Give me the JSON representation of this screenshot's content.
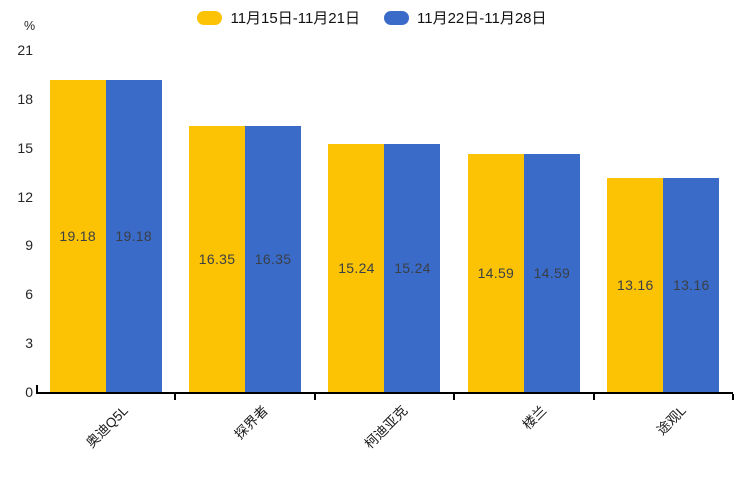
{
  "chart_data": {
    "type": "bar",
    "title": "",
    "ylabel": "%",
    "xlabel": "",
    "categories": [
      "奥迪Q5L",
      "探界者",
      "柯迪亚克",
      "楼兰",
      "途观L"
    ],
    "series": [
      {
        "name": "11月15日-11月21日",
        "color": "#FCC305",
        "values": [
          19.18,
          16.35,
          15.24,
          14.59,
          13.16
        ]
      },
      {
        "name": "11月22日-11月28日",
        "color": "#3A6BC8",
        "values": [
          19.18,
          16.35,
          15.24,
          14.59,
          13.16
        ]
      }
    ],
    "ylim": [
      0,
      21
    ],
    "yticks": [
      0,
      3,
      6,
      9,
      12,
      15,
      18,
      21
    ],
    "grid": false,
    "legend_position": "top-center",
    "value_labels": "inside-center",
    "value_label_color": "#3A3F46",
    "xtick_rotation": 45,
    "axis_color": "#000000"
  }
}
